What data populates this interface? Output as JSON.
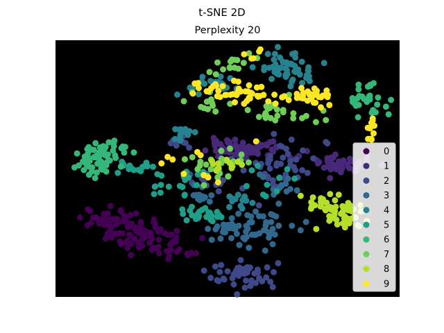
{
  "chart_data": {
    "type": "scatter",
    "title": "t-SNE 2D",
    "subtitle": "Perplexity 20",
    "xlabel": "",
    "ylabel": "",
    "background": "#000000",
    "axes_visible": false,
    "grid": false,
    "legend_position": "right",
    "xlim": [
      0,
      100
    ],
    "ylim": [
      0,
      100
    ],
    "series": [
      {
        "name": "0",
        "color": "#440154",
        "clusters": [
          {
            "cx": 16,
            "cy": 30,
            "sx": 4,
            "sy": 2.0,
            "n": 40
          },
          {
            "cx": 26,
            "cy": 24,
            "sx": 6,
            "sy": 3.0,
            "n": 70
          },
          {
            "cx": 36,
            "cy": 18,
            "sx": 3,
            "sy": 1.5,
            "n": 12
          }
        ]
      },
      {
        "name": "1",
        "color": "#482878",
        "clusters": [
          {
            "cx": 56,
            "cy": 58,
            "sx": 6,
            "sy": 2.0,
            "n": 70
          },
          {
            "cx": 83,
            "cy": 52,
            "sx": 4,
            "sy": 2.0,
            "n": 40
          }
        ]
      },
      {
        "name": "2",
        "color": "#3e4989",
        "clusters": [
          {
            "cx": 54,
            "cy": 9,
            "sx": 5,
            "sy": 3.0,
            "n": 45
          },
          {
            "cx": 66,
            "cy": 50,
            "sx": 6,
            "sy": 5.0,
            "n": 40
          },
          {
            "cx": 47,
            "cy": 45,
            "sx": 4,
            "sy": 3.0,
            "n": 15
          },
          {
            "cx": 35,
            "cy": 59,
            "sx": 2,
            "sy": 2.0,
            "n": 8
          }
        ]
      },
      {
        "name": "3",
        "color": "#31688e",
        "clusters": [
          {
            "cx": 58,
            "cy": 27,
            "sx": 6,
            "sy": 3.5,
            "n": 60
          },
          {
            "cx": 42,
            "cy": 40,
            "sx": 2,
            "sy": 2.0,
            "n": 12
          },
          {
            "cx": 66,
            "cy": 44,
            "sx": 4,
            "sy": 3.0,
            "n": 12
          }
        ]
      },
      {
        "name": "4",
        "color": "#26828e",
        "clusters": [
          {
            "cx": 67,
            "cy": 89,
            "sx": 5,
            "sy": 3.0,
            "n": 55
          },
          {
            "cx": 45,
            "cy": 83,
            "sx": 4,
            "sy": 2.0,
            "n": 25
          },
          {
            "cx": 36,
            "cy": 64,
            "sx": 2,
            "sy": 1.5,
            "n": 15
          },
          {
            "cx": 52,
            "cy": 37,
            "sx": 2,
            "sy": 1.5,
            "n": 12
          }
        ]
      },
      {
        "name": "5",
        "color": "#1f9e89",
        "clusters": [
          {
            "cx": 43,
            "cy": 32,
            "sx": 3,
            "sy": 2.0,
            "n": 25
          },
          {
            "cx": 24,
            "cy": 50,
            "sx": 3,
            "sy": 2.0,
            "n": 15
          },
          {
            "cx": 36,
            "cy": 46,
            "sx": 6,
            "sy": 4.0,
            "n": 20
          },
          {
            "cx": 61,
            "cy": 45,
            "sx": 4,
            "sy": 4.0,
            "n": 10
          }
        ]
      },
      {
        "name": "6",
        "color": "#35b779",
        "clusters": [
          {
            "cx": 10,
            "cy": 52,
            "sx": 3,
            "sy": 2.5,
            "n": 40
          },
          {
            "cx": 16,
            "cy": 57,
            "sx": 4,
            "sy": 3.0,
            "n": 30
          },
          {
            "cx": 91,
            "cy": 77,
            "sx": 3,
            "sy": 3.0,
            "n": 30
          }
        ]
      },
      {
        "name": "7",
        "color": "#6ece58",
        "clusters": [
          {
            "cx": 52,
            "cy": 90,
            "sx": 3,
            "sy": 2.0,
            "n": 15
          },
          {
            "cx": 47,
            "cy": 52,
            "sx": 5,
            "sy": 3.0,
            "n": 25
          },
          {
            "cx": 66,
            "cy": 72,
            "sx": 6,
            "sy": 3.0,
            "n": 25
          },
          {
            "cx": 44,
            "cy": 76,
            "sx": 4,
            "sy": 2.0,
            "n": 12
          }
        ]
      },
      {
        "name": "8",
        "color": "#b5de2b",
        "clusters": [
          {
            "cx": 84,
            "cy": 33,
            "sx": 3.5,
            "sy": 3.5,
            "n": 50
          },
          {
            "cx": 76,
            "cy": 37,
            "sx": 2,
            "sy": 1.5,
            "n": 12
          },
          {
            "cx": 49,
            "cy": 52,
            "sx": 3,
            "sy": 2.0,
            "n": 12
          }
        ]
      },
      {
        "name": "9",
        "color": "#fde725",
        "clusters": [
          {
            "cx": 55,
            "cy": 79,
            "sx": 3.5,
            "sy": 2.0,
            "n": 30
          },
          {
            "cx": 73,
            "cy": 78,
            "sx": 4,
            "sy": 2.0,
            "n": 35
          },
          {
            "cx": 45,
            "cy": 81,
            "sx": 4,
            "sy": 2.0,
            "n": 12
          },
          {
            "cx": 92,
            "cy": 65,
            "sx": 1,
            "sy": 2.0,
            "n": 10
          },
          {
            "cx": 58,
            "cy": 95,
            "sx": 2,
            "sy": 2.0,
            "n": 5
          },
          {
            "cx": 45,
            "cy": 52,
            "sx": 6,
            "sy": 4.0,
            "n": 10
          }
        ]
      }
    ]
  }
}
